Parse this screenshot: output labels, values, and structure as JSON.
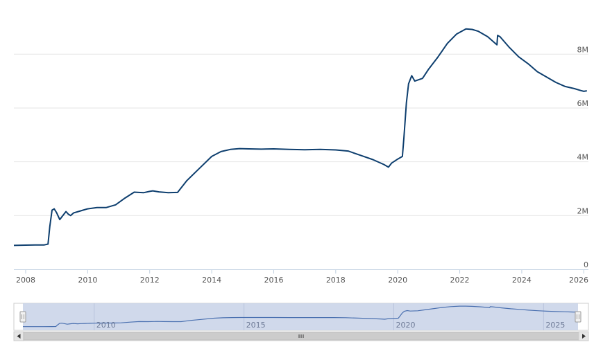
{
  "colors": {
    "line": "#0d3e6e",
    "grid": "#e6e6e6",
    "axis": "#c0d0e0",
    "navigator_fill": "#c8d2e8",
    "navigator_line": "#4a70b0",
    "scrollbar_bg": "#f0f0f0",
    "scrollbar_thumb": "#cccccc"
  },
  "chart_data": {
    "type": "line",
    "title": "",
    "xlabel": "",
    "ylabel": "",
    "x_ticks": [
      "2008",
      "2010",
      "2012",
      "2014",
      "2016",
      "2018",
      "2020",
      "2022",
      "2024",
      "2026"
    ],
    "y_ticks": [
      "0",
      "2M",
      "4M",
      "6M",
      "8M"
    ],
    "xlim": [
      2007.62,
      2026.15
    ],
    "ylim": [
      0,
      9500000
    ],
    "grid": true,
    "series": [
      {
        "x": [
          2007.62,
          2008.0,
          2008.3,
          2008.6,
          2008.72,
          2008.78,
          2008.85,
          2008.92,
          2009.0,
          2009.1,
          2009.2,
          2009.3,
          2009.38,
          2009.45,
          2009.55,
          2009.7,
          2009.85,
          2010.0,
          2010.3,
          2010.6,
          2010.9,
          2011.2,
          2011.5,
          2011.8,
          2012.0,
          2012.1,
          2012.3,
          2012.6,
          2012.9,
          2013.2,
          2013.6,
          2014.0,
          2014.3,
          2014.6,
          2014.9,
          2015.2,
          2015.6,
          2016.0,
          2016.5,
          2017.0,
          2017.5,
          2018.0,
          2018.4,
          2018.8,
          2019.2,
          2019.55,
          2019.7,
          2019.8,
          2020.0,
          2020.15,
          2020.2,
          2020.28,
          2020.35,
          2020.45,
          2020.55,
          2020.8,
          2021.0,
          2021.3,
          2021.6,
          2021.9,
          2022.2,
          2022.4,
          2022.6,
          2022.9,
          2023.2,
          2023.22,
          2023.3,
          2023.6,
          2023.9,
          2024.2,
          2024.5,
          2024.8,
          2025.1,
          2025.4,
          2025.7,
          2025.9,
          2026.0,
          2026.1
        ],
        "y": [
          890000,
          900000,
          905000,
          910000,
          940000,
          1600000,
          2200000,
          2250000,
          2100000,
          1850000,
          2000000,
          2150000,
          2050000,
          2000000,
          2100000,
          2150000,
          2200000,
          2250000,
          2300000,
          2300000,
          2400000,
          2650000,
          2870000,
          2850000,
          2900000,
          2920000,
          2880000,
          2850000,
          2860000,
          3300000,
          3750000,
          4200000,
          4380000,
          4460000,
          4490000,
          4480000,
          4470000,
          4480000,
          4460000,
          4450000,
          4460000,
          4440000,
          4400000,
          4240000,
          4080000,
          3900000,
          3800000,
          3950000,
          4100000,
          4200000,
          4900000,
          6200000,
          6900000,
          7200000,
          7000000,
          7100000,
          7450000,
          7900000,
          8400000,
          8750000,
          8940000,
          8920000,
          8850000,
          8650000,
          8350000,
          8700000,
          8650000,
          8250000,
          7900000,
          7650000,
          7350000,
          7150000,
          6950000,
          6800000,
          6720000,
          6650000,
          6620000,
          6640000
        ]
      }
    ],
    "navigator": {
      "labels": [
        "2010",
        "2015",
        "2020",
        "2025"
      ]
    }
  }
}
